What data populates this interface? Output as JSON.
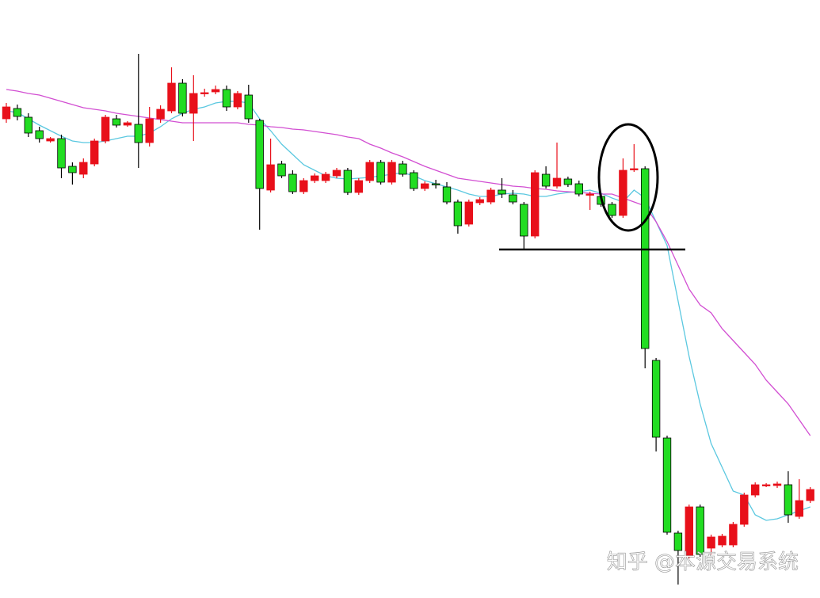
{
  "chart_data": {
    "type": "candlestick",
    "up_color": "#e8101a",
    "down_color": "#22dd22",
    "wick_color": "#000000",
    "ylim": [
      0,
      755
    ],
    "open": [
      605,
      618,
      607,
      590,
      577,
      580,
      545,
      535,
      548,
      577,
      605,
      597,
      598,
      575,
      605,
      615,
      650,
      612,
      638,
      639,
      642,
      620,
      635,
      603,
      515,
      548,
      535,
      513,
      527,
      527,
      533,
      540,
      512,
      527,
      550,
      525,
      548,
      537,
      517,
      523,
      519,
      500,
      472,
      499,
      500,
      515,
      509,
      497,
      457,
      535,
      520,
      529,
      523,
      510,
      507,
      497,
      483,
      541,
      542,
      300,
      202,
      82,
      53,
      115,
      63,
      67,
      67,
      93,
      130,
      143,
      142,
      143,
      103,
      123
    ],
    "close": [
      620,
      608,
      587,
      580,
      580,
      543,
      537,
      550,
      577,
      607,
      597,
      600,
      575,
      605,
      617,
      650,
      612,
      637,
      638,
      642,
      620,
      637,
      605,
      517,
      547,
      533,
      513,
      527,
      533,
      535,
      540,
      512,
      527,
      550,
      525,
      550,
      535,
      517,
      523,
      522,
      500,
      470,
      500,
      503,
      515,
      510,
      500,
      457,
      537,
      520,
      530,
      522,
      510,
      510,
      497,
      483,
      540,
      542,
      315,
      203,
      83,
      60,
      115,
      55,
      77,
      78,
      93,
      130,
      143,
      143,
      144,
      105,
      123,
      137
    ],
    "high": [
      625,
      623,
      612,
      595,
      582,
      585,
      550,
      555,
      580,
      610,
      610,
      602,
      687,
      620,
      622,
      670,
      655,
      660,
      643,
      647,
      647,
      640,
      648,
      605,
      580,
      552,
      540,
      530,
      536,
      538,
      543,
      543,
      530,
      553,
      553,
      553,
      552,
      540,
      526,
      528,
      525,
      503,
      503,
      506,
      518,
      530,
      515,
      500,
      540,
      545,
      575,
      532,
      527,
      513,
      510,
      500,
      555,
      573,
      545,
      303,
      205,
      85,
      118,
      118,
      80,
      81,
      96,
      133,
      146,
      145,
      147,
      160,
      150,
      140
    ],
    "low": [
      600,
      603,
      582,
      575,
      575,
      530,
      522,
      530,
      545,
      574,
      594,
      595,
      543,
      570,
      600,
      612,
      608,
      577,
      633,
      636,
      615,
      617,
      600,
      465,
      512,
      530,
      510,
      510,
      524,
      524,
      530,
      509,
      509,
      524,
      522,
      522,
      532,
      514,
      514,
      517,
      497,
      460,
      469,
      496,
      497,
      505,
      497,
      440,
      454,
      517,
      517,
      519,
      507,
      490,
      494,
      480,
      480,
      538,
      290,
      185,
      80,
      17,
      50,
      52,
      55,
      64,
      64,
      90,
      127,
      140,
      139,
      95,
      100,
      120
    ],
    "lines": [
      {
        "color": "#5bc8e0",
        "values": [
          615,
          613,
          605,
          597,
          590,
          583,
          577,
          575,
          575,
          577,
          580,
          583,
          583,
          587,
          595,
          605,
          612,
          617,
          620,
          625,
          627,
          627,
          625,
          605,
          590,
          573,
          560,
          547,
          540,
          533,
          530,
          529,
          530,
          531,
          533,
          535,
          537,
          533,
          527,
          523,
          519,
          515,
          510,
          507,
          507,
          510,
          511,
          510,
          507,
          507,
          510,
          512,
          513,
          515,
          511,
          505,
          500,
          515,
          505,
          475,
          445,
          375,
          305,
          245,
          195,
          165,
          135,
          130,
          105,
          98,
          100,
          105,
          110,
          115
        ]
      },
      {
        "color": "#d24fd2",
        "values": [
          642,
          640,
          637,
          635,
          631,
          627,
          623,
          619,
          617,
          615,
          612,
          610,
          608,
          606,
          604,
          602,
          600,
          600,
          600,
          600,
          600,
          600,
          598,
          597,
          595,
          594,
          592,
          591,
          589,
          587,
          585,
          582,
          580,
          573,
          568,
          562,
          557,
          551,
          545,
          540,
          535,
          530,
          528,
          526,
          524,
          522,
          520,
          519,
          517,
          516,
          514,
          513,
          512,
          511,
          510,
          510,
          505,
          500,
          495,
          475,
          450,
          420,
          390,
          370,
          360,
          340,
          325,
          310,
          295,
          275,
          260,
          245,
          225,
          205
        ]
      }
    ],
    "watermark": "知乎 @本源交易系统"
  }
}
